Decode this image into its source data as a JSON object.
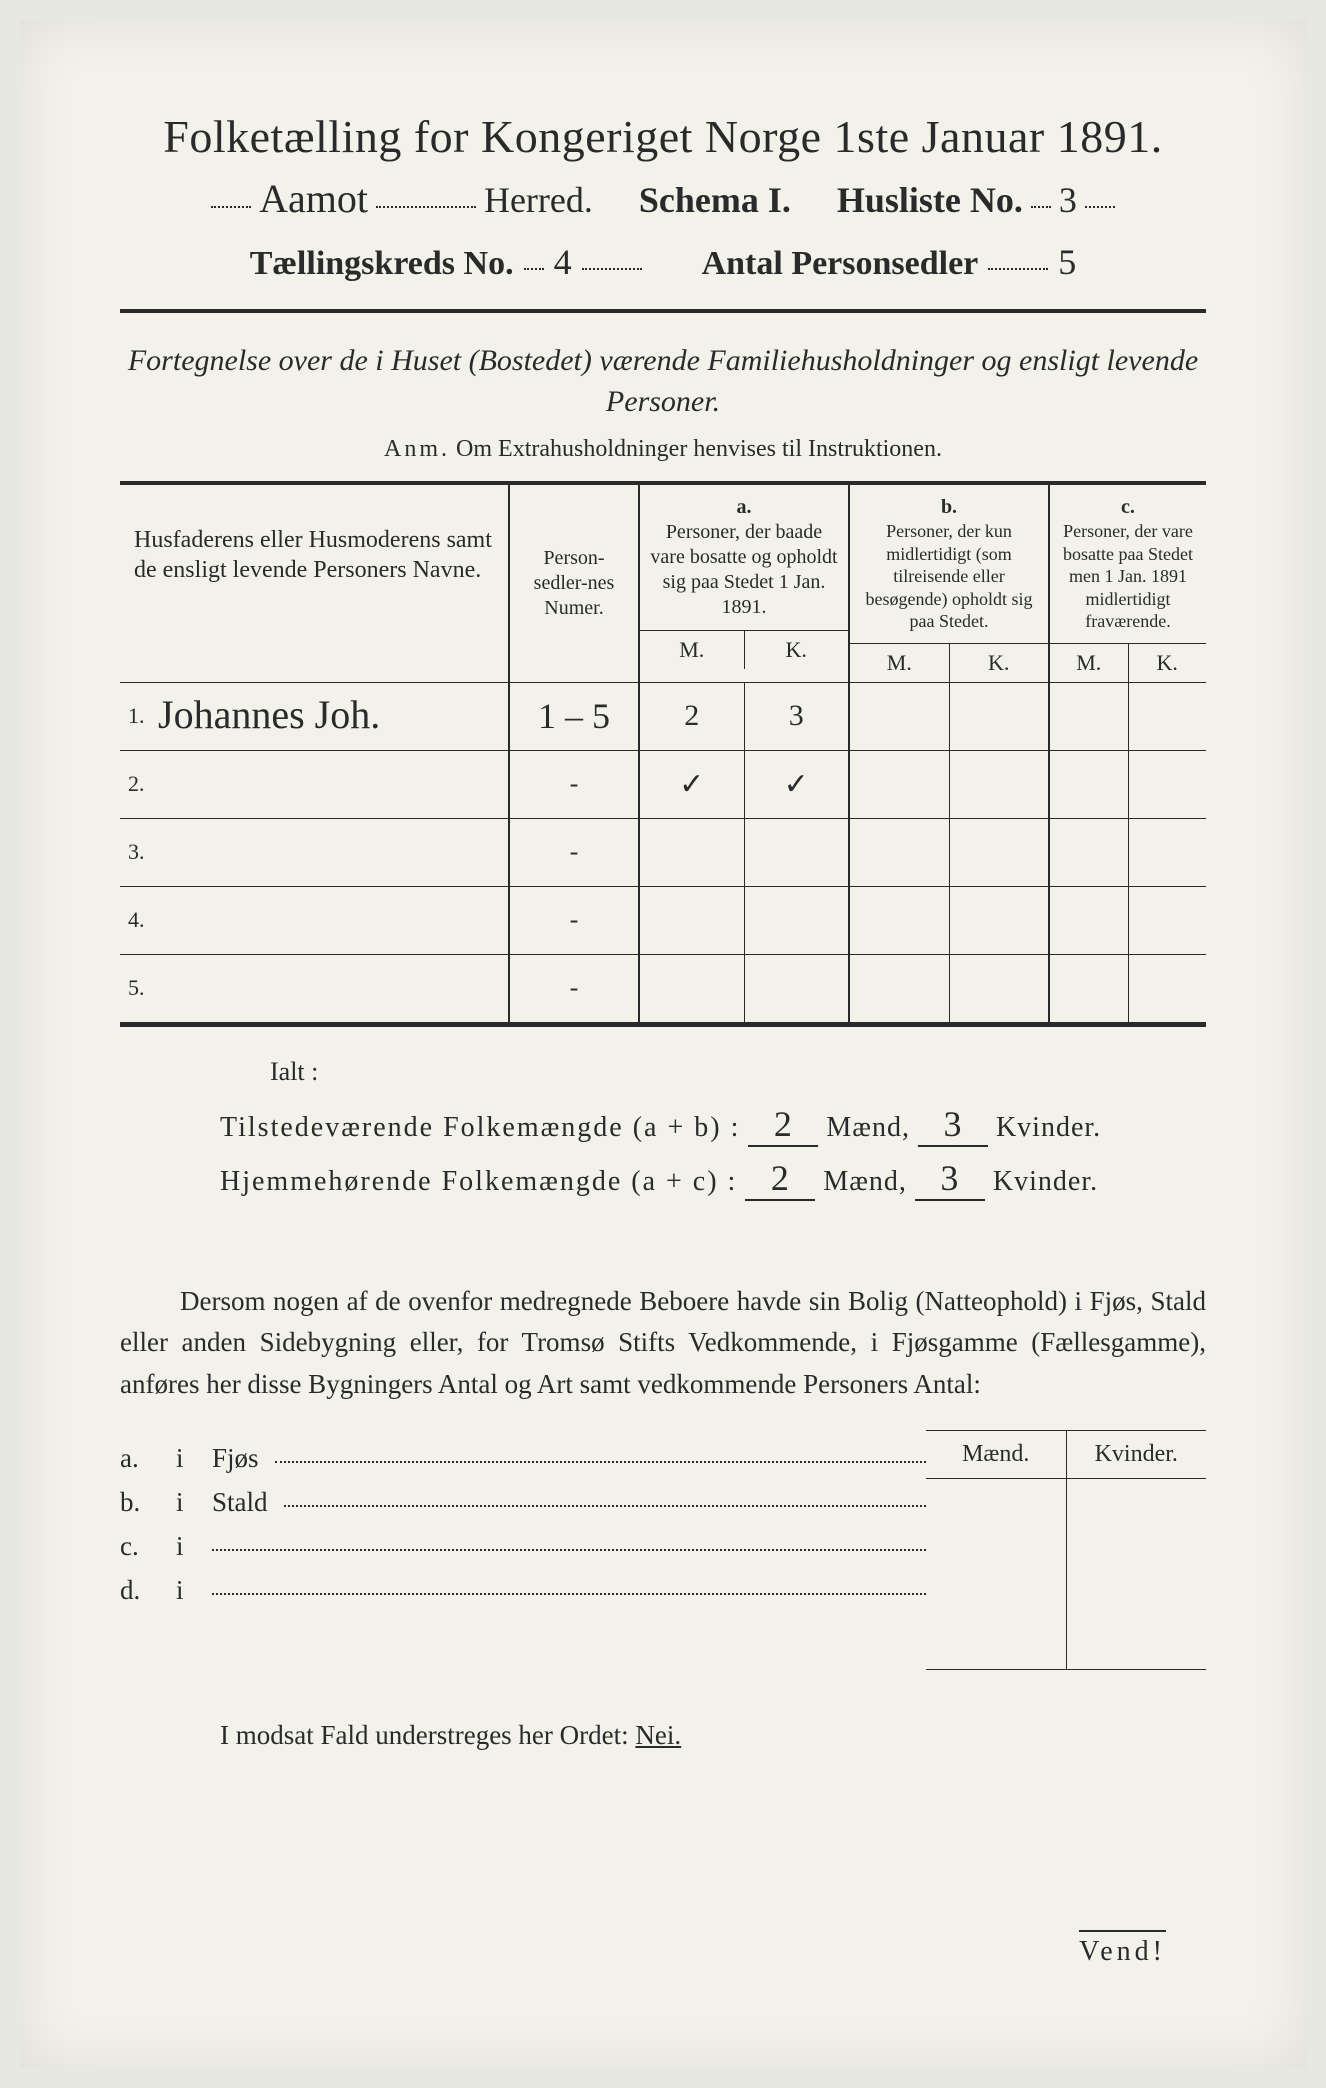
{
  "title": "Folketælling for Kongeriget Norge 1ste Januar 1891.",
  "header": {
    "herred_hand": "Aamot",
    "herred_label": "Herred.",
    "schema_label": "Schema I.",
    "husliste_label": "Husliste No.",
    "husliste_no": "3",
    "kreds_label": "Tællingskreds No.",
    "kreds_no": "4",
    "antal_label": "Antal Personsedler",
    "antal_val": "5"
  },
  "subtitle": "Fortegnelse over de i Huset (Bostedet) værende Familiehusholdninger og ensligt levende Personer.",
  "anm_label": "Anm.",
  "anm_text": "Om Extrahusholdninger henvises til Instruktionen.",
  "table": {
    "col1": "Husfaderens eller Husmoderens samt de ensligt levende Personers Navne.",
    "col2": "Person-sedler-nes Numer.",
    "abc": {
      "a": "a.",
      "b": "b.",
      "c": "c."
    },
    "col3": "Personer, der baade vare bosatte og opholdt sig paa Stedet 1 Jan. 1891.",
    "col4": "Personer, der kun midlertidigt (som tilreisende eller besøgende) opholdt sig paa Stedet.",
    "col5": "Personer, der vare bosatte paa Stedet men 1 Jan. 1891 midlertidigt fraværende.",
    "M": "M.",
    "K": "K.",
    "rows": [
      {
        "num": "1.",
        "name": "Johannes Joh.",
        "sedler": "1 – 5",
        "aM": "2",
        "aK": "3",
        "bM": "",
        "bK": "",
        "cM": "",
        "cK": ""
      },
      {
        "num": "2.",
        "name": "",
        "sedler": "-",
        "aM": "✓",
        "aK": "✓",
        "bM": "",
        "bK": "",
        "cM": "",
        "cK": ""
      },
      {
        "num": "3.",
        "name": "",
        "sedler": "-",
        "aM": "",
        "aK": "",
        "bM": "",
        "bK": "",
        "cM": "",
        "cK": ""
      },
      {
        "num": "4.",
        "name": "",
        "sedler": "-",
        "aM": "",
        "aK": "",
        "bM": "",
        "bK": "",
        "cM": "",
        "cK": ""
      },
      {
        "num": "5.",
        "name": "",
        "sedler": "-",
        "aM": "",
        "aK": "",
        "bM": "",
        "bK": "",
        "cM": "",
        "cK": ""
      }
    ]
  },
  "ialt": "Ialt :",
  "sums": {
    "line1_label": "Tilstedeværende Folkemængde (a + b) :",
    "line2_label": "Hjemmehørende Folkemængde (a + c) :",
    "maend": "Mænd,",
    "kvinder": "Kvinder.",
    "l1_m": "2",
    "l1_k": "3",
    "l2_m": "2",
    "l2_k": "3"
  },
  "para": "Dersom nogen af de ovenfor medregnede Beboere havde sin Bolig (Natteophold) i Fjøs, Stald eller anden Sidebygning eller, for Tromsø Stifts Vedkommende, i Fjøsgamme (Fællesgamme), anføres her disse Bygningers Antal og Art samt vedkommende Personers Antal:",
  "mkhead": {
    "m": "Mænd.",
    "k": "Kvinder."
  },
  "list": {
    "a": {
      "lab": "a.",
      "i": "i",
      "txt": "Fjøs"
    },
    "b": {
      "lab": "b.",
      "i": "i",
      "txt": "Stald"
    },
    "c": {
      "lab": "c.",
      "i": "i",
      "txt": ""
    },
    "d": {
      "lab": "d.",
      "i": "i",
      "txt": ""
    }
  },
  "nei_pre": "I modsat Fald understreges her Ordet:",
  "nei": "Nei.",
  "vend": "Vend!"
}
